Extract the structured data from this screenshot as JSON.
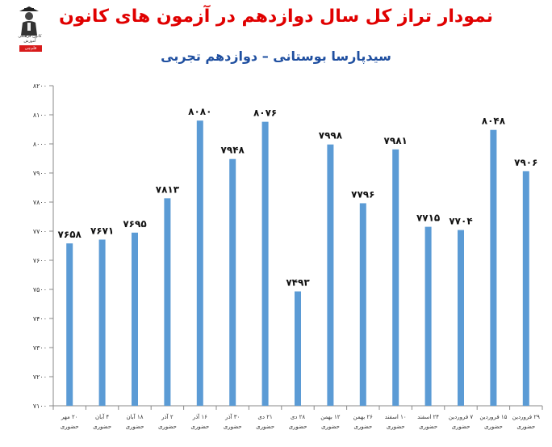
{
  "title": "نمودار تراز کل سال دوازدهم در آزمون های کانون",
  "subtitle": "سیدپارسا بوستانی – دوازدهم تجربی",
  "logo": {
    "name": "kanoon-logo",
    "text": "کانون فرهنگی آموزش",
    "badge": "قلم‌چی"
  },
  "chart_data": {
    "type": "bar",
    "categories": [
      {
        "date": "۲۰ مهر",
        "mode": "حضوری"
      },
      {
        "date": "۴ آبان",
        "mode": "حضوری"
      },
      {
        "date": "۱۸ آبان",
        "mode": "حضوری"
      },
      {
        "date": "۲ آذر",
        "mode": "حضوری"
      },
      {
        "date": "۱۶ آذر",
        "mode": "حضوری"
      },
      {
        "date": "۳۰ آذر",
        "mode": "حضوری"
      },
      {
        "date": "۲۱ دی",
        "mode": "حضوری"
      },
      {
        "date": "۲۸ دی",
        "mode": "حضوری"
      },
      {
        "date": "۱۲ بهمن",
        "mode": "حضوری"
      },
      {
        "date": "۲۶ بهمن",
        "mode": "حضوری"
      },
      {
        "date": "۱۰ اسفند",
        "mode": "حضوری"
      },
      {
        "date": "۲۴ اسفند",
        "mode": "حضوری"
      },
      {
        "date": "۷ فروردین",
        "mode": "حضوری"
      },
      {
        "date": "۱۵ فروردین",
        "mode": "حضوری"
      },
      {
        "date": "۲۹ فروردین",
        "mode": "حضوری"
      }
    ],
    "values": [
      7658,
      7671,
      7695,
      7813,
      8080,
      7948,
      8076,
      7493,
      7998,
      7796,
      7981,
      7715,
      7704,
      8048,
      7906
    ],
    "value_labels": [
      "۷۶۵۸",
      "۷۶۷۱",
      "۷۶۹۵",
      "۷۸۱۳",
      "۸۰۸۰",
      "۷۹۴۸",
      "۸۰۷۶",
      "۷۴۹۳",
      "۷۹۹۸",
      "۷۷۹۶",
      "۷۹۸۱",
      "۷۷۱۵",
      "۷۷۰۴",
      "۸۰۴۸",
      "۷۹۰۶"
    ],
    "ylim": [
      7100,
      8200
    ],
    "y_ticks": [
      7100,
      7200,
      7300,
      7400,
      7500,
      7600,
      7700,
      7800,
      7900,
      8000,
      8100,
      8200
    ],
    "y_tick_labels": [
      "۷۱۰۰",
      "۷۲۰۰",
      "۷۳۰۰",
      "۷۴۰۰",
      "۷۵۰۰",
      "۷۶۰۰",
      "۷۷۰۰",
      "۷۸۰۰",
      "۷۹۰۰",
      "۸۰۰۰",
      "۸۱۰۰",
      "۸۲۰۰"
    ],
    "bar_color": "#5b9bd5",
    "grid": false,
    "legend": "none"
  }
}
